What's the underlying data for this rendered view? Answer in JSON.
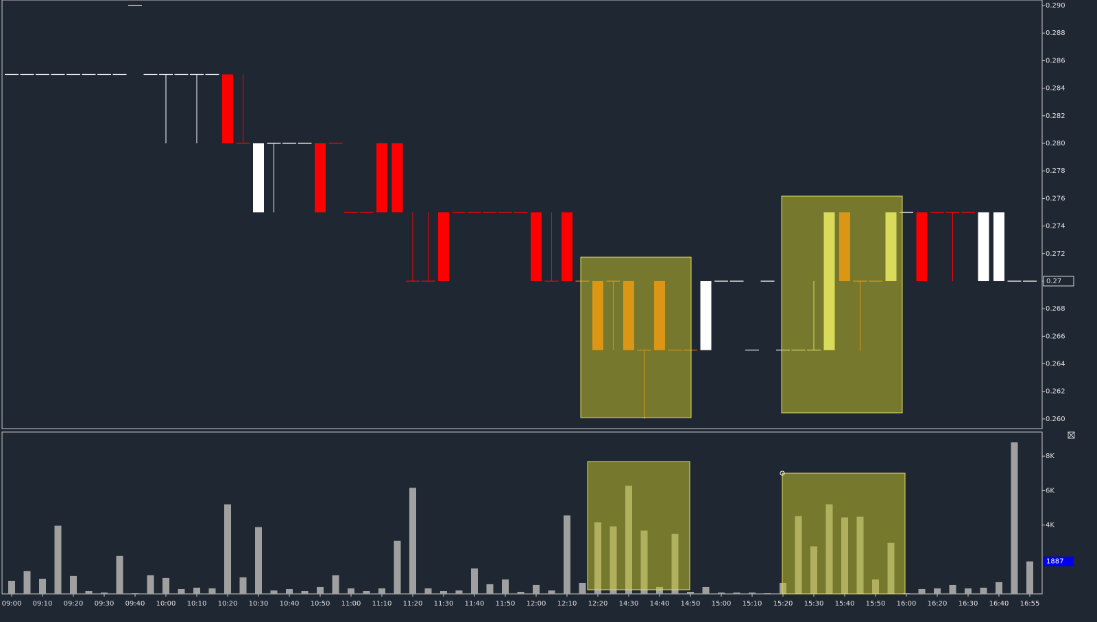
{
  "chart_data": [
    {
      "type": "candlestick",
      "open": [
        0.285,
        0.285,
        0.285,
        0.285,
        0.285,
        0.285,
        0.285,
        0.285,
        0.29,
        0.285,
        0.285,
        0.285,
        0.285,
        0.285,
        0.285,
        0.28,
        0.28,
        0.28,
        0.28,
        0.28,
        0.28,
        0.28,
        0.275,
        0.275,
        0.28,
        0.28,
        0.27,
        0.27,
        0.275,
        0.275,
        0.275,
        0.275,
        0.275,
        0.275,
        0.275,
        0.27,
        0.275,
        0.27,
        0.27,
        0.27,
        0.27,
        0.265,
        0.27,
        0.265,
        0.265,
        0.27,
        0.27,
        0.27,
        0.265,
        0.27,
        0.265,
        0.265,
        0.265,
        0.265,
        0.275,
        0.27,
        0.27,
        0.27,
        0.275,
        0.275,
        0.275,
        0.275,
        0.275,
        0.275,
        0.275,
        0.27,
        0.27
      ],
      "high": [
        0.285,
        0.285,
        0.285,
        0.285,
        0.285,
        0.285,
        0.285,
        0.285,
        0.29,
        0.285,
        0.285,
        0.285,
        0.285,
        0.285,
        0.285,
        0.285,
        0.28,
        0.28,
        0.28,
        0.28,
        0.28,
        0.28,
        0.275,
        0.275,
        0.28,
        0.28,
        0.275,
        0.275,
        0.275,
        0.275,
        0.275,
        0.275,
        0.275,
        0.275,
        0.275,
        0.275,
        0.275,
        0.27,
        0.27,
        0.27,
        0.27,
        0.265,
        0.27,
        0.265,
        0.265,
        0.27,
        0.27,
        0.27,
        0.265,
        0.27,
        0.265,
        0.265,
        0.27,
        0.275,
        0.275,
        0.27,
        0.27,
        0.275,
        0.275,
        0.275,
        0.275,
        0.275,
        0.275,
        0.275,
        0.275,
        0.27,
        0.27
      ],
      "low": [
        0.285,
        0.285,
        0.285,
        0.285,
        0.285,
        0.285,
        0.285,
        0.285,
        0.29,
        0.285,
        0.28,
        0.285,
        0.28,
        0.285,
        0.28,
        0.28,
        0.275,
        0.275,
        0.28,
        0.28,
        0.275,
        0.28,
        0.275,
        0.275,
        0.275,
        0.275,
        0.27,
        0.27,
        0.27,
        0.275,
        0.275,
        0.275,
        0.275,
        0.275,
        0.27,
        0.27,
        0.27,
        0.27,
        0.265,
        0.265,
        0.265,
        0.26,
        0.265,
        0.265,
        0.265,
        0.265,
        0.27,
        0.27,
        0.265,
        0.27,
        0.265,
        0.265,
        0.265,
        0.265,
        0.27,
        0.265,
        0.27,
        0.27,
        0.275,
        0.27,
        0.275,
        0.27,
        0.275,
        0.27,
        0.27,
        0.27,
        0.27
      ],
      "close": [
        0.285,
        0.285,
        0.285,
        0.285,
        0.285,
        0.285,
        0.285,
        0.285,
        0.29,
        0.285,
        0.285,
        0.285,
        0.285,
        0.285,
        0.28,
        0.28,
        0.275,
        0.28,
        0.28,
        0.28,
        0.275,
        0.28,
        0.275,
        0.275,
        0.275,
        0.275,
        0.27,
        0.27,
        0.27,
        0.275,
        0.275,
        0.275,
        0.275,
        0.275,
        0.27,
        0.27,
        0.27,
        0.27,
        0.265,
        0.27,
        0.265,
        0.265,
        0.265,
        0.265,
        0.265,
        0.265,
        0.27,
        0.27,
        0.265,
        0.27,
        0.265,
        0.265,
        0.265,
        0.275,
        0.27,
        0.27,
        0.27,
        0.275,
        0.275,
        0.27,
        0.275,
        0.275,
        0.275,
        0.27,
        0.27,
        0.27,
        0.27
      ],
      "colors": [
        "#ffffff",
        "#ffffff",
        "#ffffff",
        "#ffffff",
        "#ffffff",
        "#ffffff",
        "#ffffff",
        "#ffffff",
        "#ffffff",
        "#ffffff",
        "#ffffff",
        "#ffffff",
        "#ffffff",
        "#ffffff",
        "#ff0000",
        "#ff0000",
        "#ffffff",
        "#ffffff",
        "#ffffff",
        "#ffffff",
        "#ff0000",
        "#ff0000",
        "#ff0000",
        "#ff0000",
        "#ff0000",
        "#ff0000",
        "#ff0000",
        "#ff0000",
        "#ff0000",
        "#ff0000",
        "#ff0000",
        "#ff0000",
        "#ff0000",
        "#ff0000",
        "#ff0000",
        "#ff0000",
        "#ff0000",
        "#ff6600",
        "#ff6600",
        "#ff6600",
        "#ff6600",
        "#ff6600",
        "#ff6600",
        "#ff6600",
        "#ff6600",
        "#ffffff",
        "#ffffff",
        "#ffffff",
        "#ffffff",
        "#ffffff",
        "#ffffff",
        "#ffffff",
        "#ffff99",
        "#ffff99",
        "#ff6600",
        "#ff6600",
        "#ff6600",
        "#ffff99",
        "#ffffff",
        "#ff0000",
        "#ff0000",
        "#ff0000",
        "#ff0000",
        "#ffffff",
        "#ffffff",
        "#ffffff",
        "#ffffff"
      ],
      "ylim": [
        0.2593,
        0.2904
      ],
      "yticks": [
        {
          "value": 0.29,
          "label": "0.290"
        },
        {
          "value": 0.288,
          "label": "0.288"
        },
        {
          "value": 0.286,
          "label": "0.286"
        },
        {
          "value": 0.284,
          "label": "0.284"
        },
        {
          "value": 0.282,
          "label": "0.282"
        },
        {
          "value": 0.28,
          "label": "0.280"
        },
        {
          "value": 0.278,
          "label": "0.278"
        },
        {
          "value": 0.276,
          "label": "0.276"
        },
        {
          "value": 0.274,
          "label": "0.274"
        },
        {
          "value": 0.272,
          "label": "0.272"
        },
        {
          "value": 0.27,
          "label": "0.270"
        },
        {
          "value": 0.268,
          "label": "0.268"
        },
        {
          "value": 0.266,
          "label": "0.266"
        },
        {
          "value": 0.264,
          "label": "0.264"
        },
        {
          "value": 0.262,
          "label": "0.262"
        },
        {
          "value": 0.26,
          "label": "0.260"
        }
      ],
      "last_value": 0.27
    },
    {
      "type": "bar",
      "categories": [
        "09:00",
        null,
        "09:10",
        null,
        "09:20",
        null,
        "09:30",
        null,
        "09:40",
        null,
        "10:00",
        null,
        "10:10",
        null,
        "10:20",
        null,
        "10:30",
        null,
        "10:40",
        null,
        "10:50",
        null,
        "11:00",
        null,
        "11:10",
        null,
        "11:20",
        null,
        "11:30",
        null,
        "11:40",
        null,
        "11:50",
        null,
        "12:00",
        null,
        "12:10",
        null,
        "12:20",
        null,
        "14:30",
        null,
        "14:40",
        null,
        "14:50",
        null,
        "15:00",
        null,
        "15:10",
        null,
        "15:20",
        null,
        "15:30",
        null,
        "15:40",
        null,
        "15:50",
        null,
        "16:00",
        null,
        "16:20",
        null,
        "16:30",
        null,
        "16:40",
        null,
        "16:55"
      ],
      "values": [
        760,
        1320,
        880,
        3960,
        1040,
        160,
        80,
        2200,
        40,
        1080,
        920,
        280,
        360,
        320,
        5200,
        960,
        3880,
        200,
        280,
        160,
        400,
        1080,
        320,
        160,
        320,
        3080,
        6160,
        320,
        160,
        200,
        1480,
        560,
        840,
        120,
        520,
        200,
        4560,
        640,
        4160,
        3920,
        6280,
        3680,
        400,
        3480,
        120,
        400,
        80,
        80,
        80,
        40,
        640,
        4520,
        2760,
        5200,
        4440,
        4480,
        840,
        2960,
        40,
        280,
        320,
        520,
        320,
        360,
        680,
        8800,
        1887
      ],
      "color": "#a0a0a0",
      "ylim": [
        0,
        9400
      ],
      "yticks": [
        {
          "value": 8000,
          "label": "8K"
        },
        {
          "value": 6000,
          "label": "6K"
        },
        {
          "value": 4000,
          "label": "4K"
        }
      ]
    }
  ]
}
